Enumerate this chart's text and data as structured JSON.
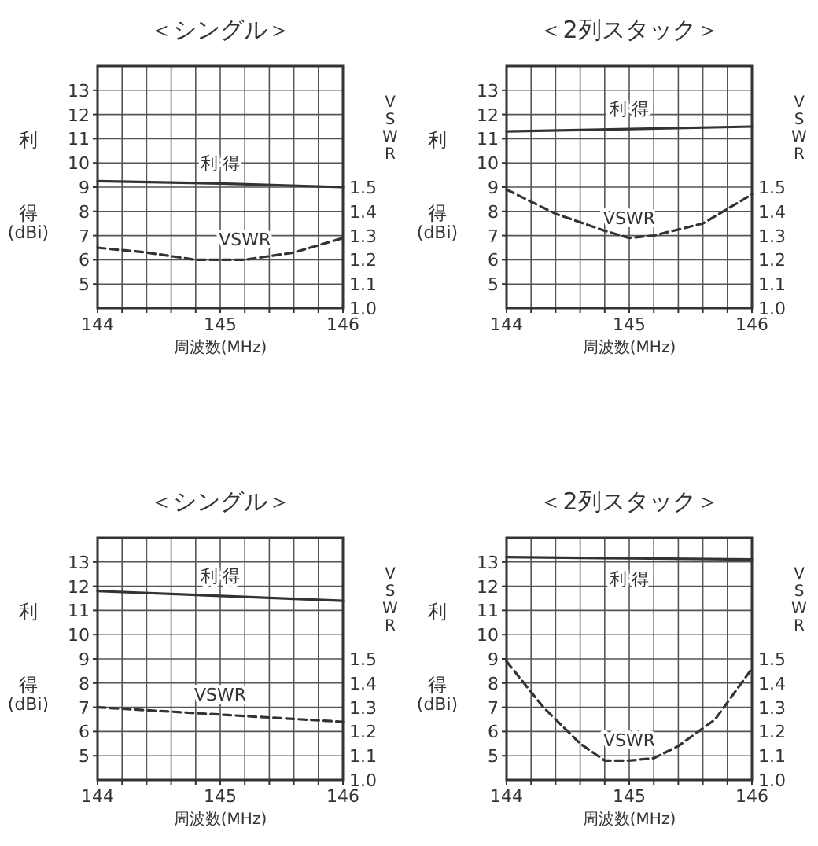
{
  "chart_data": [
    {
      "type": "line",
      "title": "＜シングル＞",
      "xlabel": "周波数(MHz)",
      "ylabel": "利得(dBi)",
      "y2label": "VSWR",
      "xlim": [
        144,
        146
      ],
      "xticks": [
        144,
        {
          "value": 144.2,
          "label": null
        },
        {
          "value": 144.4,
          "label": null
        },
        {
          "value": 144.6,
          "label": null
        },
        {
          "value": 144.8,
          "label": null
        },
        145,
        {
          "value": 145.2,
          "label": null
        },
        {
          "value": 145.4,
          "label": null
        },
        {
          "value": 145.6,
          "label": null
        },
        {
          "value": 145.8,
          "label": null
        },
        146
      ],
      "ylim": [
        4,
        14
      ],
      "yticks": [
        5,
        6,
        7,
        8,
        9,
        10,
        11,
        12,
        13
      ],
      "y2lim": [
        1.0,
        2.0
      ],
      "y2ticks": [
        "1.0",
        1.1,
        1.2,
        1.3,
        1.4,
        1.5
      ],
      "grid": true,
      "marker": "none",
      "series": [
        {
          "name": "利 得",
          "color": "#333333",
          "line_style": "solid",
          "x": [
            144,
            145,
            146
          ],
          "values": [
            9.25,
            9.15,
            9.0
          ]
        },
        {
          "name": "VSWR",
          "color": "#333333",
          "line_style": "dashed",
          "axis": "y2",
          "x": [
            144,
            144.4,
            144.8,
            145.2,
            145.6,
            146
          ],
          "values": [
            1.25,
            1.23,
            1.2,
            1.2,
            1.23,
            1.29
          ]
        }
      ]
    },
    {
      "type": "line",
      "title": "＜2列スタック＞",
      "xlabel": "周波数(MHz)",
      "ylabel": "利得(dBi)",
      "y2label": "VSWR",
      "xlim": [
        144,
        146
      ],
      "xticks": [
        144,
        {
          "value": 144.2,
          "label": null
        },
        {
          "value": 144.4,
          "label": null
        },
        {
          "value": 144.6,
          "label": null
        },
        {
          "value": 144.8,
          "label": null
        },
        145,
        {
          "value": 145.2,
          "label": null
        },
        {
          "value": 145.4,
          "label": null
        },
        {
          "value": 145.6,
          "label": null
        },
        {
          "value": 145.8,
          "label": null
        },
        146
      ],
      "ylim": [
        4,
        14
      ],
      "yticks": [
        5,
        6,
        7,
        8,
        9,
        10,
        11,
        12,
        13
      ],
      "y2lim": [
        1.0,
        2.0
      ],
      "y2ticks": [
        "1.0",
        1.1,
        1.2,
        1.3,
        1.4,
        1.5
      ],
      "grid": true,
      "marker": "none",
      "series": [
        {
          "name": "利 得",
          "color": "#333333",
          "line_style": "solid",
          "x": [
            144,
            145,
            146
          ],
          "values": [
            11.3,
            11.4,
            11.5
          ]
        },
        {
          "name": "VSWR",
          "color": "#333333",
          "line_style": "dashed",
          "axis": "y2",
          "x": [
            144,
            144.4,
            144.8,
            145,
            145.2,
            145.6,
            146
          ],
          "values": [
            1.49,
            1.39,
            1.32,
            1.29,
            1.3,
            1.35,
            1.47
          ]
        }
      ]
    },
    {
      "type": "line",
      "title": "＜シングル＞",
      "xlabel": "周波数(MHz)",
      "ylabel": "利得(dBi)",
      "y2label": "VSWR",
      "xlim": [
        144,
        146
      ],
      "xticks": [
        144,
        {
          "value": 144.2,
          "label": null
        },
        {
          "value": 144.4,
          "label": null
        },
        {
          "value": 144.6,
          "label": null
        },
        {
          "value": 144.8,
          "label": null
        },
        145,
        {
          "value": 145.2,
          "label": null
        },
        {
          "value": 145.4,
          "label": null
        },
        {
          "value": 145.6,
          "label": null
        },
        {
          "value": 145.8,
          "label": null
        },
        146
      ],
      "ylim": [
        4,
        14
      ],
      "yticks": [
        5,
        6,
        7,
        8,
        9,
        10,
        11,
        12,
        13
      ],
      "y2lim": [
        1.0,
        2.0
      ],
      "y2ticks": [
        "1.0",
        1.1,
        1.2,
        1.3,
        1.4,
        1.5
      ],
      "grid": true,
      "marker": "none",
      "series": [
        {
          "name": "利 得",
          "color": "#333333",
          "line_style": "solid",
          "x": [
            144,
            145,
            146
          ],
          "values": [
            11.8,
            11.6,
            11.4
          ]
        },
        {
          "name": "VSWR",
          "color": "#333333",
          "line_style": "dashed",
          "axis": "y2",
          "x": [
            144,
            145,
            146
          ],
          "values": [
            1.3,
            1.27,
            1.24
          ]
        }
      ]
    },
    {
      "type": "line",
      "title": "＜2列スタック＞",
      "xlabel": "周波数(MHz)",
      "ylabel": "利得(dBi)",
      "y2label": "VSWR",
      "xlim": [
        144,
        146
      ],
      "xticks": [
        144,
        {
          "value": 144.2,
          "label": null
        },
        {
          "value": 144.4,
          "label": null
        },
        {
          "value": 144.6,
          "label": null
        },
        {
          "value": 144.8,
          "label": null
        },
        145,
        {
          "value": 145.2,
          "label": null
        },
        {
          "value": 145.4,
          "label": null
        },
        {
          "value": 145.6,
          "label": null
        },
        {
          "value": 145.8,
          "label": null
        },
        146
      ],
      "ylim": [
        4,
        14
      ],
      "yticks": [
        5,
        6,
        7,
        8,
        9,
        10,
        11,
        12,
        13
      ],
      "y2lim": [
        1.0,
        2.0
      ],
      "y2ticks": [
        "1.0",
        1.1,
        1.2,
        1.3,
        1.4,
        1.5
      ],
      "grid": true,
      "marker": "none",
      "series": [
        {
          "name": "利 得",
          "color": "#333333",
          "line_style": "solid",
          "x": [
            144,
            145,
            146
          ],
          "values": [
            13.2,
            13.15,
            13.1
          ]
        },
        {
          "name": "VSWR",
          "color": "#333333",
          "line_style": "dashed",
          "axis": "y2",
          "x": [
            144,
            144.3,
            144.6,
            144.8,
            145,
            145.2,
            145.4,
            145.7,
            146
          ],
          "values": [
            1.49,
            1.3,
            1.15,
            1.08,
            1.08,
            1.09,
            1.14,
            1.25,
            1.46
          ]
        }
      ]
    }
  ]
}
